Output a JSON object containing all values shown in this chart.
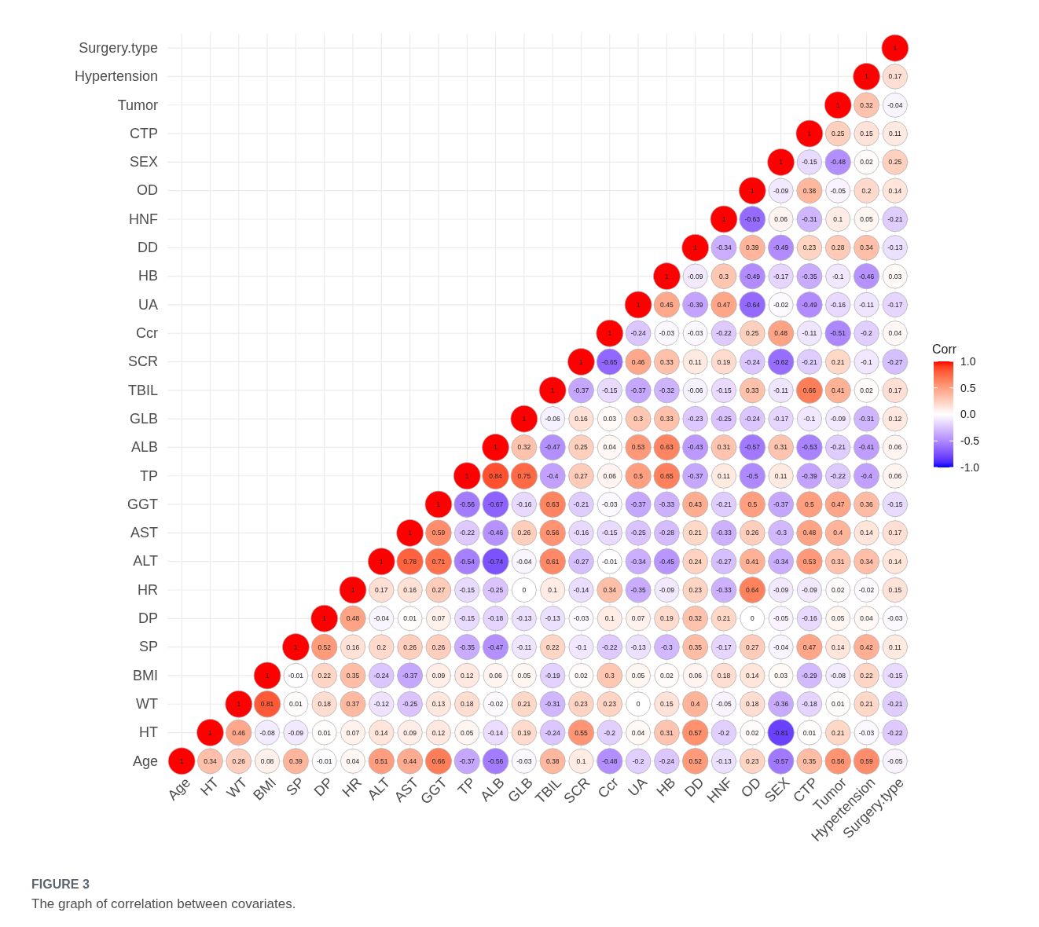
{
  "chart_data": {
    "type": "heatmap",
    "clabel": "Corr",
    "clim": [
      -1,
      1
    ],
    "cticks": [
      {
        "value": 1,
        "label": "1.0"
      },
      {
        "value": 0.5,
        "label": "0.5"
      },
      {
        "value": 0,
        "label": "0.0"
      },
      {
        "value": -0.5,
        "label": "-0.5"
      },
      {
        "value": -1,
        "label": "-1.0"
      }
    ],
    "grid": true,
    "data_labels": true,
    "annotations": [
      "FIGURE 3",
      "The graph of correlation between covariates."
    ],
    "categories": [
      "Age",
      "HT",
      "WT",
      "BMI",
      "SP",
      "DP",
      "HR",
      "ALT",
      "AST",
      "GGT",
      "TP",
      "ALB",
      "GLB",
      "TBIL",
      "SCR",
      "Ccr",
      "UA",
      "HB",
      "DD",
      "HNF",
      "OD",
      "SEX",
      "CTP",
      "Tumor",
      "Hypertension",
      "Surgery.type"
    ],
    "y_categories": [
      "Surgery.type",
      "Hypertension",
      "Tumor",
      "CTP",
      "SEX",
      "OD",
      "HNF",
      "DD",
      "HB",
      "UA",
      "Ccr",
      "SCR",
      "TBIL",
      "GLB",
      "ALB",
      "TP",
      "GGT",
      "AST",
      "ALT",
      "HR",
      "DP",
      "SP",
      "BMI",
      "WT",
      "HT",
      "Age"
    ],
    "cells": [
      [
        null,
        null,
        null,
        null,
        null,
        null,
        null,
        null,
        null,
        null,
        null,
        null,
        null,
        null,
        null,
        null,
        null,
        null,
        null,
        null,
        null,
        null,
        null,
        null,
        null,
        1
      ],
      [
        null,
        null,
        null,
        null,
        null,
        null,
        null,
        null,
        null,
        null,
        null,
        null,
        null,
        null,
        null,
        null,
        null,
        null,
        null,
        null,
        null,
        null,
        null,
        null,
        1,
        0.17
      ],
      [
        null,
        null,
        null,
        null,
        null,
        null,
        null,
        null,
        null,
        null,
        null,
        null,
        null,
        null,
        null,
        null,
        null,
        null,
        null,
        null,
        null,
        null,
        null,
        1,
        0.32,
        -0.04
      ],
      [
        null,
        null,
        null,
        null,
        null,
        null,
        null,
        null,
        null,
        null,
        null,
        null,
        null,
        null,
        null,
        null,
        null,
        null,
        null,
        null,
        null,
        null,
        1,
        0.25,
        0.15,
        0.11
      ],
      [
        null,
        null,
        null,
        null,
        null,
        null,
        null,
        null,
        null,
        null,
        null,
        null,
        null,
        null,
        null,
        null,
        null,
        null,
        null,
        null,
        null,
        1,
        -0.15,
        -0.48,
        0.02,
        0.25
      ],
      [
        null,
        null,
        null,
        null,
        null,
        null,
        null,
        null,
        null,
        null,
        null,
        null,
        null,
        null,
        null,
        null,
        null,
        null,
        null,
        null,
        1,
        -0.09,
        0.38,
        -0.05,
        0.2,
        0.14
      ],
      [
        null,
        null,
        null,
        null,
        null,
        null,
        null,
        null,
        null,
        null,
        null,
        null,
        null,
        null,
        null,
        null,
        null,
        null,
        null,
        1,
        -0.63,
        0.06,
        -0.31,
        0.1,
        0.05,
        -0.21
      ],
      [
        null,
        null,
        null,
        null,
        null,
        null,
        null,
        null,
        null,
        null,
        null,
        null,
        null,
        null,
        null,
        null,
        null,
        null,
        1,
        -0.34,
        0.39,
        -0.49,
        0.23,
        0.28,
        0.34,
        -0.13
      ],
      [
        null,
        null,
        null,
        null,
        null,
        null,
        null,
        null,
        null,
        null,
        null,
        null,
        null,
        null,
        null,
        null,
        null,
        1,
        -0.09,
        0.3,
        -0.49,
        -0.17,
        -0.35,
        -0.1,
        -0.46,
        0.03
      ],
      [
        null,
        null,
        null,
        null,
        null,
        null,
        null,
        null,
        null,
        null,
        null,
        null,
        null,
        null,
        null,
        null,
        1,
        0.45,
        -0.39,
        0.47,
        -0.64,
        -0.02,
        -0.49,
        -0.16,
        -0.11,
        -0.17
      ],
      [
        null,
        null,
        null,
        null,
        null,
        null,
        null,
        null,
        null,
        null,
        null,
        null,
        null,
        null,
        null,
        1,
        -0.24,
        -0.03,
        -0.03,
        -0.22,
        0.25,
        0.48,
        -0.11,
        -0.51,
        -0.2,
        0.04
      ],
      [
        null,
        null,
        null,
        null,
        null,
        null,
        null,
        null,
        null,
        null,
        null,
        null,
        null,
        null,
        1,
        -0.65,
        0.46,
        0.33,
        0.11,
        0.19,
        -0.24,
        -0.62,
        -0.21,
        0.21,
        -0.1,
        -0.27
      ],
      [
        null,
        null,
        null,
        null,
        null,
        null,
        null,
        null,
        null,
        null,
        null,
        null,
        null,
        1,
        -0.37,
        -0.15,
        -0.37,
        -0.32,
        -0.06,
        -0.15,
        0.33,
        -0.11,
        0.66,
        0.41,
        0.02,
        0.17
      ],
      [
        null,
        null,
        null,
        null,
        null,
        null,
        null,
        null,
        null,
        null,
        null,
        null,
        1,
        -0.06,
        0.16,
        0.03,
        0.3,
        0.33,
        -0.23,
        -0.25,
        -0.24,
        -0.17,
        -0.1,
        -0.09,
        -0.31,
        0.12
      ],
      [
        null,
        null,
        null,
        null,
        null,
        null,
        null,
        null,
        null,
        null,
        null,
        1,
        0.32,
        -0.47,
        0.25,
        0.04,
        0.53,
        0.63,
        -0.43,
        0.31,
        -0.57,
        0.31,
        -0.53,
        -0.21,
        -0.41,
        0.06
      ],
      [
        null,
        null,
        null,
        null,
        null,
        null,
        null,
        null,
        null,
        null,
        1,
        0.84,
        0.75,
        -0.4,
        0.27,
        0.06,
        0.5,
        0.65,
        -0.37,
        0.11,
        -0.5,
        0.11,
        -0.39,
        -0.22,
        -0.4,
        0.06
      ],
      [
        null,
        null,
        null,
        null,
        null,
        null,
        null,
        null,
        null,
        1,
        -0.56,
        -0.67,
        -0.16,
        0.63,
        -0.21,
        -0.03,
        -0.37,
        -0.33,
        0.43,
        -0.21,
        0.5,
        -0.37,
        0.5,
        0.47,
        0.36,
        -0.15
      ],
      [
        null,
        null,
        null,
        null,
        null,
        null,
        null,
        null,
        1,
        0.59,
        -0.22,
        -0.46,
        0.26,
        0.56,
        -0.16,
        -0.15,
        -0.25,
        -0.28,
        0.21,
        -0.33,
        0.26,
        -0.3,
        0.48,
        0.4,
        0.14,
        0.17
      ],
      [
        null,
        null,
        null,
        null,
        null,
        null,
        null,
        1,
        0.78,
        0.71,
        -0.54,
        -0.74,
        -0.04,
        0.61,
        -0.27,
        -0.01,
        -0.34,
        -0.45,
        0.24,
        -0.27,
        0.41,
        -0.34,
        0.53,
        0.31,
        0.34,
        0.14
      ],
      [
        null,
        null,
        null,
        null,
        null,
        null,
        1,
        0.17,
        0.16,
        0.27,
        -0.15,
        -0.25,
        0,
        0.1,
        -0.14,
        0.34,
        -0.35,
        -0.09,
        0.23,
        -0.33,
        0.64,
        -0.09,
        -0.09,
        0.02,
        -0.02,
        0.15
      ],
      [
        null,
        null,
        null,
        null,
        null,
        1,
        0.48,
        -0.04,
        0.01,
        0.07,
        -0.15,
        -0.18,
        -0.13,
        -0.13,
        -0.03,
        0.1,
        0.07,
        0.19,
        0.32,
        0.21,
        0,
        -0.05,
        -0.16,
        0.05,
        0.04,
        -0.03
      ],
      [
        null,
        null,
        null,
        null,
        1,
        0.52,
        0.16,
        0.2,
        0.26,
        0.26,
        -0.35,
        -0.47,
        -0.11,
        0.22,
        -0.1,
        -0.22,
        -0.13,
        -0.3,
        0.35,
        -0.17,
        0.27,
        -0.04,
        0.47,
        0.14,
        0.42,
        0.11
      ],
      [
        null,
        null,
        null,
        1,
        -0.01,
        0.22,
        0.35,
        -0.24,
        -0.37,
        0.09,
        0.12,
        0.06,
        0.05,
        -0.19,
        0.02,
        0.3,
        0.05,
        0.02,
        0.06,
        0.18,
        0.14,
        0.03,
        -0.29,
        -0.08,
        0.22,
        -0.15
      ],
      [
        null,
        null,
        1,
        0.81,
        0.01,
        0.18,
        0.37,
        -0.12,
        -0.25,
        0.13,
        0.18,
        -0.02,
        0.21,
        -0.31,
        0.23,
        0.23,
        0,
        0.15,
        0.4,
        -0.05,
        0.18,
        -0.36,
        -0.18,
        0.01,
        0.21,
        -0.21
      ],
      [
        null,
        1,
        0.46,
        -0.08,
        -0.09,
        0.01,
        0.07,
        0.14,
        0.09,
        0.12,
        0.05,
        -0.14,
        0.19,
        -0.24,
        0.55,
        -0.2,
        0.04,
        0.31,
        0.57,
        -0.2,
        0.02,
        -0.81,
        0.01,
        0.21,
        -0.03,
        -0.22
      ],
      [
        1,
        0.34,
        0.26,
        0.08,
        0.39,
        -0.01,
        0.04,
        0.51,
        0.44,
        0.66,
        -0.37,
        -0.56,
        -0.03,
        0.38,
        0.1,
        -0.48,
        -0.2,
        -0.24,
        0.52,
        -0.13,
        0.23,
        -0.57,
        0.35,
        0.56,
        0.59,
        -0.05
      ]
    ]
  }
}
